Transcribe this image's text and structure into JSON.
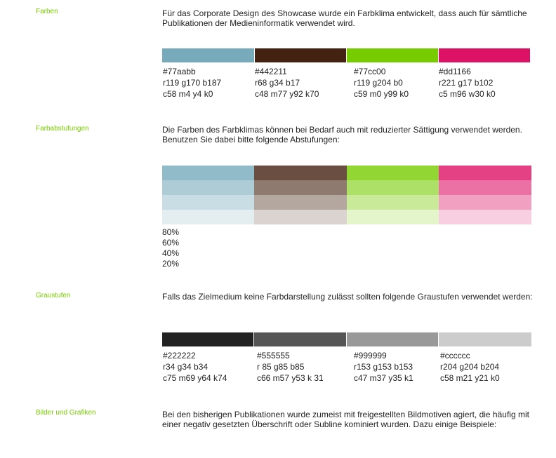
{
  "sections": {
    "farben": {
      "label": "Farben",
      "text": "Für das Corporate Design des Showcase wurde ein Farbklima entwickelt, dass auch für sämtliche Publikationen der Medieninformatik verwendet wird.",
      "swatches": [
        {
          "color": "#77aabb",
          "hex": "#77aabb",
          "rgb": "r119 g170 b187",
          "cmyk": "c58 m4 y4 k0"
        },
        {
          "color": "#442211",
          "hex": "#442211",
          "rgb": "r68 g34 b17",
          "cmyk": "c48 m77 y92 k70"
        },
        {
          "color": "#77cc00",
          "hex": "#77cc00",
          "rgb": "r119 g204 b0",
          "cmyk": "c59 m0 y99 k0"
        },
        {
          "color": "#dd1166",
          "hex": "#dd1166",
          "rgb": "r221 g17 b102",
          "cmyk": "c5 m96 w30 k0"
        }
      ]
    },
    "farbabstufungen": {
      "label": "Farbabstufungen",
      "text": "Die Farben des Farbklimas können bei Bedarf auch mit reduzierter Sättigung verwendet werden. Benutzen Sie dabei bitte folgende Abstufungen:",
      "rows": [
        [
          "#92bbc9",
          "#694e41",
          "#92d633",
          "#e44185"
        ],
        [
          "#adccd6",
          "#8f7a70",
          "#ade066",
          "#eb70a3"
        ],
        [
          "#c9dde4",
          "#b4a7a0",
          "#c9eb99",
          "#f1a0c2"
        ],
        [
          "#e4eef1",
          "#dad3cf",
          "#e4f5cc",
          "#f8cfe0"
        ]
      ],
      "percentages": [
        "80%",
        "60%",
        "40%",
        "20%"
      ]
    },
    "graustufen": {
      "label": "Graustufen",
      "text": "Falls das Zielmedium keine Farbdarstellung zulässt sollten folgende Graustufen verwendet werden:",
      "swatches": [
        {
          "color": "#222222",
          "hex": "#222222",
          "rgb": "r34 g34 b34",
          "cmyk": "c75 m69 y64 k74"
        },
        {
          "color": "#555555",
          "hex": "#555555",
          "rgb": "r 85 g85 b85",
          "cmyk": "c66 m57 y53 k 31"
        },
        {
          "color": "#999999",
          "hex": "#999999",
          "rgb": "r153 g153 b153",
          "cmyk": "c47 m37 y35 k1"
        },
        {
          "color": "#cccccc",
          "hex": "#cccccc",
          "rgb": "r204 g204 b204",
          "cmyk": "c58 m21 y21 k0"
        }
      ]
    },
    "bilder": {
      "label": "Bilder und Grafiken",
      "text": "Bei den bisherigen Publikationen wurde zumeist mit freigestellten Bildmotiven agiert, die häufig mit einer negativ gesetzten Überschrift oder Subline kominiert wurden. Dazu einige Beispiele:"
    }
  }
}
